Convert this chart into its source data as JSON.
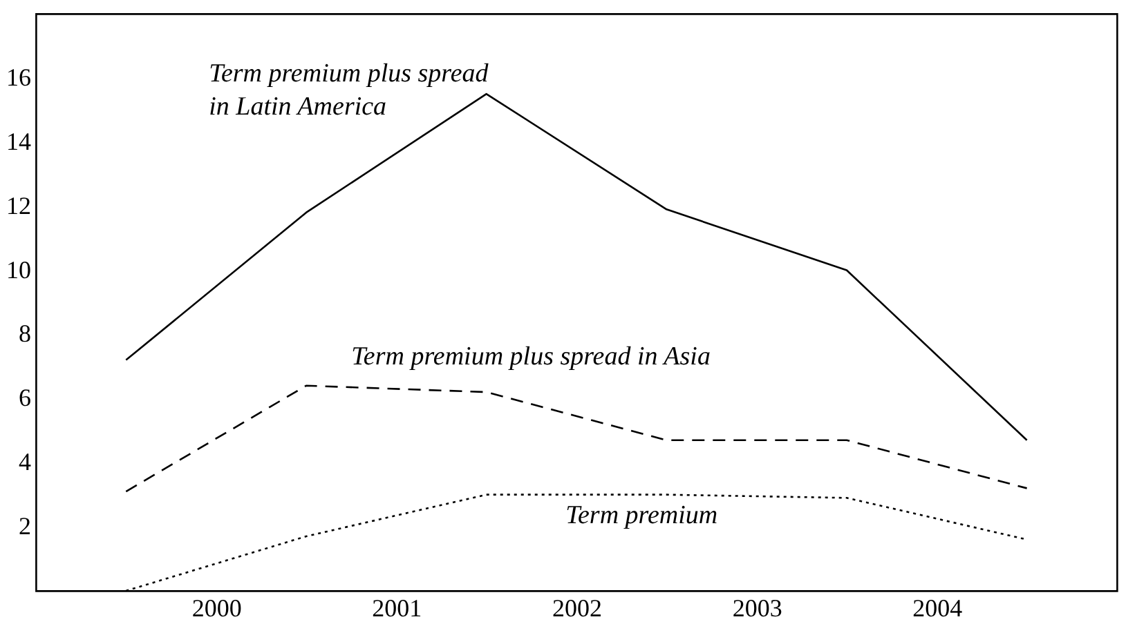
{
  "chart_data": {
    "type": "line",
    "x": [
      1999.5,
      2000.5,
      2001.5,
      2002.5,
      2003.5,
      2004.5
    ],
    "xlim": [
      1999,
      2005
    ],
    "xticks": [
      2000,
      2001,
      2002,
      2003,
      2004
    ],
    "ylim": [
      0,
      18
    ],
    "yticks": [
      2,
      4,
      6,
      8,
      10,
      12,
      14,
      16
    ],
    "grid": false,
    "marker": "none",
    "series": [
      {
        "name": "Term premium plus spread in Latin America",
        "color": "#000000",
        "line_style": "solid",
        "values": [
          7.2,
          11.8,
          15.5,
          11.9,
          10.0,
          4.7
        ]
      },
      {
        "name": "Term premium plus spread in Asia",
        "color": "#000000",
        "line_style": "dashed",
        "values": [
          3.1,
          6.4,
          6.2,
          4.7,
          4.7,
          3.2
        ]
      },
      {
        "name": "Term premium",
        "color": "#000000",
        "line_style": "dotted",
        "values": [
          0.0,
          1.7,
          3.0,
          3.0,
          2.9,
          1.6
        ]
      }
    ]
  }
}
